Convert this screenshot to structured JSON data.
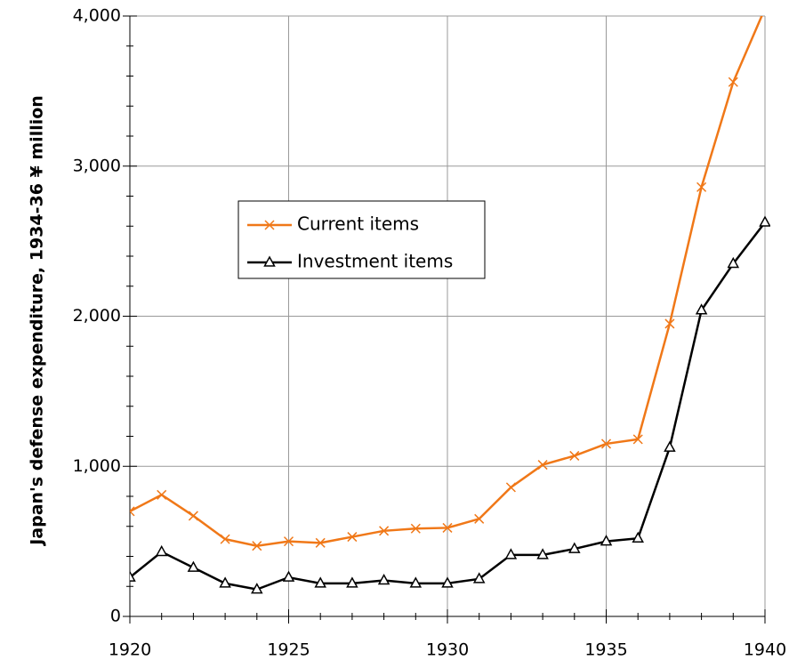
{
  "chart_data": {
    "type": "line",
    "y_label": "Japan's defense expenditure, 1934-36 ¥ million",
    "x": [
      1920,
      1921,
      1922,
      1923,
      1924,
      1925,
      1926,
      1927,
      1928,
      1929,
      1930,
      1931,
      1932,
      1933,
      1934,
      1935,
      1936,
      1937,
      1938,
      1939,
      1940
    ],
    "series": [
      {
        "name": "Current items",
        "color": "#f07818",
        "marker": "x",
        "values": [
          700,
          810,
          670,
          515,
          470,
          500,
          490,
          530,
          570,
          585,
          590,
          650,
          860,
          1010,
          1070,
          1150,
          1180,
          1950,
          2860,
          3560,
          4050
        ]
      },
      {
        "name": "Investment items",
        "color": "#000000",
        "marker": "triangle",
        "values": [
          260,
          430,
          325,
          220,
          180,
          260,
          220,
          220,
          240,
          220,
          220,
          250,
          410,
          410,
          450,
          500,
          520,
          1125,
          2040,
          2350,
          2625
        ]
      }
    ],
    "xlim": [
      1920,
      1940
    ],
    "xticks": [
      1920,
      1925,
      1930,
      1935,
      1940
    ],
    "ylim": [
      0,
      4000
    ],
    "yticks": [
      0,
      {
        "value": 1000,
        "label": "1,000"
      },
      {
        "value": 2000,
        "label": "2,000"
      },
      {
        "value": 3000,
        "label": "3,000"
      },
      {
        "value": 4000,
        "label": "4,000"
      }
    ],
    "grid": true,
    "legend": "center-left"
  }
}
